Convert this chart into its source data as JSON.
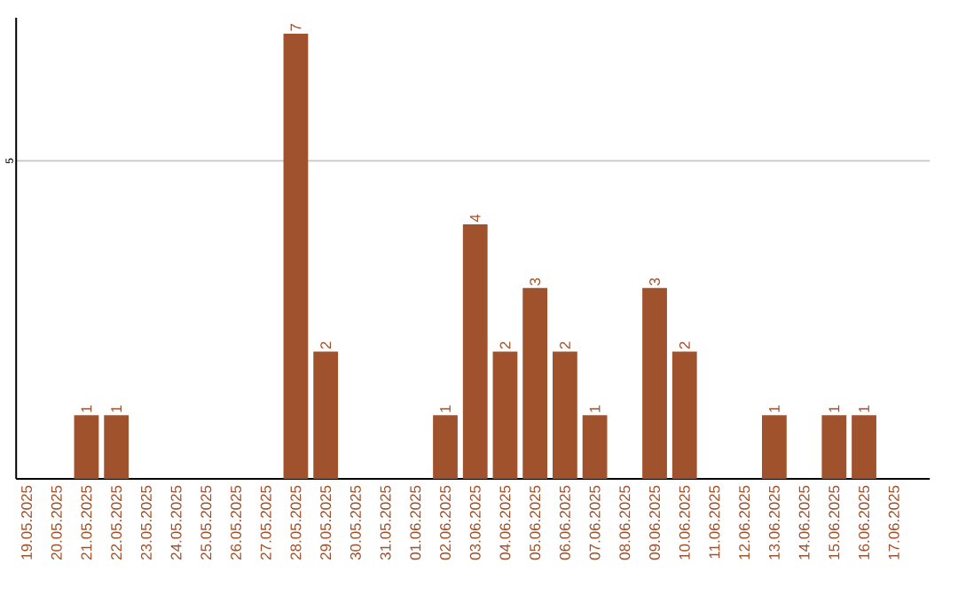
{
  "chart_data": {
    "type": "bar",
    "categories": [
      "19.05.2025",
      "20.05.2025",
      "21.05.2025",
      "22.05.2025",
      "23.05.2025",
      "24.05.2025",
      "25.05.2025",
      "26.05.2025",
      "27.05.2025",
      "28.05.2025",
      "29.05.2025",
      "30.05.2025",
      "31.05.2025",
      "01.06.2025",
      "02.06.2025",
      "03.06.2025",
      "04.06.2025",
      "05.06.2025",
      "06.06.2025",
      "07.06.2025",
      "08.06.2025",
      "09.06.2025",
      "10.06.2025",
      "11.06.2025",
      "12.06.2025",
      "13.06.2025",
      "14.06.2025",
      "15.06.2025",
      "16.06.2025",
      "17.06.2025"
    ],
    "values": [
      0,
      0,
      1,
      1,
      0,
      0,
      0,
      0,
      0,
      7,
      2,
      0,
      0,
      0,
      1,
      4,
      2,
      3,
      2,
      1,
      0,
      3,
      2,
      0,
      0,
      1,
      0,
      1,
      1,
      0
    ],
    "value_labels": [
      null,
      null,
      "1",
      "1",
      null,
      null,
      null,
      null,
      null,
      "7",
      "2",
      null,
      null,
      null,
      "1",
      "4",
      "2",
      "3",
      "2",
      "1",
      null,
      "3",
      "2",
      null,
      null,
      "1",
      null,
      "1",
      "1",
      null
    ],
    "color": "#a0522d",
    "ylim": [
      0,
      7.25
    ],
    "yticks": [
      5
    ],
    "grid": "y"
  }
}
